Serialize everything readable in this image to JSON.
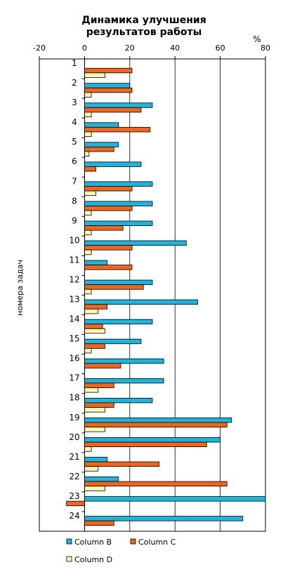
{
  "chart_data": {
    "type": "bar",
    "orientation": "horizontal",
    "title_lines": [
      "Динамика улучшения",
      "результатов работы"
    ],
    "xlabel": "%",
    "ylabel": "номера задач",
    "xlim": [
      -20,
      80
    ],
    "xticks": [
      "-20",
      "0",
      "20",
      "40",
      "60",
      "80"
    ],
    "xtick_values": [
      -20,
      0,
      20,
      40,
      60,
      80
    ],
    "grid": "vertical",
    "legend_position": "bottom",
    "categories": [
      "1",
      "2",
      "3",
      "4",
      "5",
      "6",
      "7",
      "8",
      "9",
      "10",
      "11",
      "12",
      "13",
      "14",
      "15",
      "16",
      "17",
      "18",
      "19",
      "20",
      "21",
      "22",
      "23",
      "24"
    ],
    "series": [
      {
        "name": "Column B",
        "color": "#1eb4dc",
        "values": [
          0,
          20,
          30,
          15,
          15,
          25,
          30,
          30,
          30,
          45,
          10,
          30,
          50,
          30,
          25,
          35,
          35,
          30,
          65,
          60,
          10,
          15,
          80,
          70
        ]
      },
      {
        "name": "Column C",
        "color": "#f0641e",
        "values": [
          21,
          21,
          25,
          29,
          13,
          5,
          21,
          21,
          17,
          21,
          21,
          26,
          10,
          8,
          9,
          16,
          13,
          13,
          63,
          54,
          33,
          63,
          -8,
          13
        ]
      },
      {
        "name": "Column D",
        "color": "#fff7b4",
        "values": [
          9,
          3,
          3,
          3,
          2,
          0,
          5,
          3,
          3,
          3,
          0,
          3,
          6,
          9,
          3,
          0,
          6,
          9,
          9,
          3,
          6,
          9,
          0,
          0
        ]
      }
    ]
  }
}
